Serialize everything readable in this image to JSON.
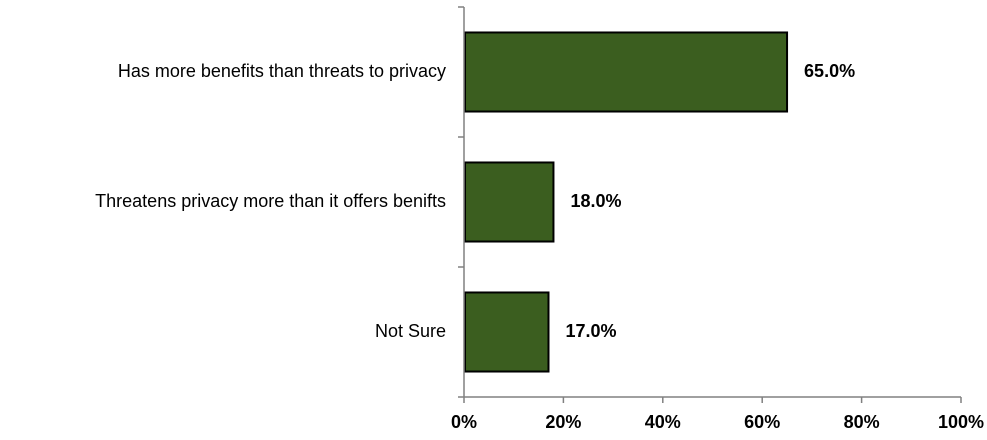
{
  "chart_data": {
    "type": "bar",
    "orientation": "horizontal",
    "categories": [
      "Has more benefits than threats to privacy",
      "Threatens privacy more than it offers benifts",
      "Not Sure"
    ],
    "values": [
      65.0,
      18.0,
      17.0
    ],
    "data_labels": [
      "65.0%",
      "18.0%",
      "17.0%"
    ],
    "xlim": [
      0,
      100
    ],
    "x_ticks": [
      0,
      20,
      40,
      60,
      80,
      100
    ],
    "x_tick_labels": [
      "0%",
      "20%",
      "40%",
      "60%",
      "80%",
      "100%"
    ],
    "title": "",
    "xlabel": "",
    "ylabel": "",
    "grid": false,
    "legend": "none",
    "bar_color": "#3b5e1f",
    "bar_edge_color": "#000000"
  }
}
